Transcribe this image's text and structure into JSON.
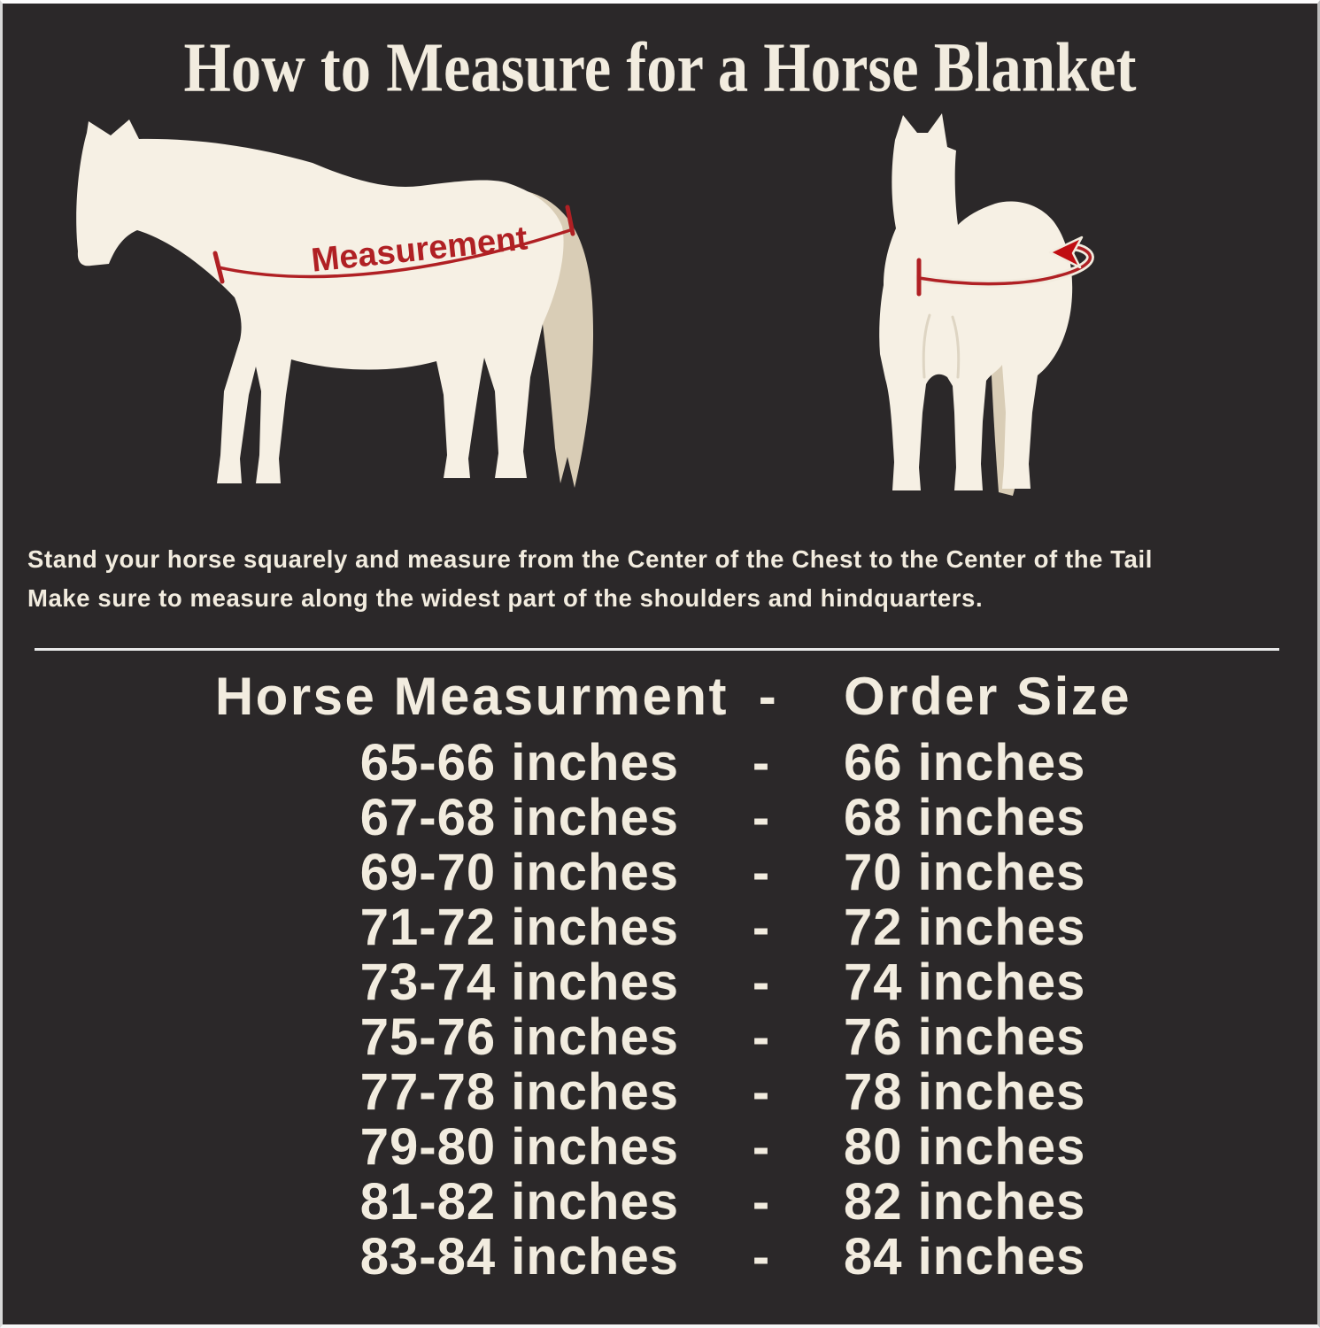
{
  "title": "How to Measure for a Horse Blanket",
  "diagram": {
    "measurement_label": "Measurement"
  },
  "instructions": {
    "line1": "Stand your horse squarely and measure from the Center of the Chest to the Center of the Tail",
    "line2": "Make sure to measure along the widest part of the shoulders and hindquarters."
  },
  "size_table": {
    "header_measurement": "Horse Measurment",
    "header_separator": "-",
    "header_order": "Order Size",
    "row_separator": "-",
    "rows": [
      {
        "measurement": "65-66 inches",
        "order": "66 inches"
      },
      {
        "measurement": "67-68 inches",
        "order": "68 inches"
      },
      {
        "measurement": "69-70 inches",
        "order": "70 inches"
      },
      {
        "measurement": "71-72 inches",
        "order": "72 inches"
      },
      {
        "measurement": "73-74 inches",
        "order": "74 inches"
      },
      {
        "measurement": "75-76 inches",
        "order": "76 inches"
      },
      {
        "measurement": "77-78 inches",
        "order": "78 inches"
      },
      {
        "measurement": "79-80 inches",
        "order": "80 inches"
      },
      {
        "measurement": "81-82 inches",
        "order": "82 inches"
      },
      {
        "measurement": "83-84 inches",
        "order": "84 inches"
      }
    ]
  },
  "colors": {
    "background": "#2b2829",
    "cream": "#f2ecdf",
    "horse_body": "#f6f0e4",
    "horse_tail": "#d9cdb6",
    "accent_red": "#b02024",
    "arrow_red": "#c00d12",
    "divider": "#e8e8e8"
  }
}
